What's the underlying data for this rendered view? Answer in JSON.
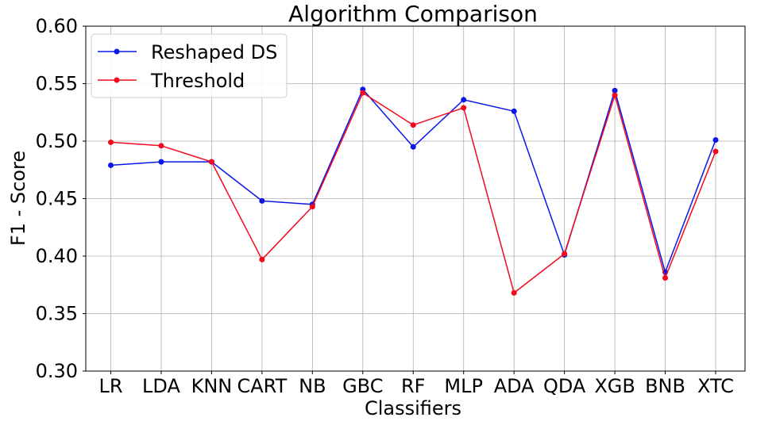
{
  "chart_data": {
    "type": "line",
    "title": "Algorithm Comparison",
    "xlabel": "Classifiers",
    "ylabel": "F1 - Score",
    "categories": [
      "LR",
      "LDA",
      "KNN",
      "CART",
      "NB",
      "GBC",
      "RF",
      "MLP",
      "ADA",
      "QDA",
      "XGB",
      "BNB",
      "XTC"
    ],
    "ylim": [
      0.3,
      0.6
    ],
    "yticks": [
      "0.30",
      "0.35",
      "0.40",
      "0.45",
      "0.50",
      "0.55",
      "0.60"
    ],
    "grid": true,
    "legend_position": "top-left",
    "series": [
      {
        "name": "Reshaped DS",
        "color": "#0a17e8",
        "values": [
          0.479,
          0.482,
          0.482,
          0.448,
          0.445,
          0.545,
          0.495,
          0.536,
          0.526,
          0.401,
          0.544,
          0.386,
          0.501
        ]
      },
      {
        "name": "Threshold",
        "color": "#f20a1e",
        "values": [
          0.499,
          0.496,
          0.482,
          0.397,
          0.443,
          0.542,
          0.514,
          0.529,
          0.368,
          0.402,
          0.54,
          0.381,
          0.491
        ]
      }
    ]
  }
}
